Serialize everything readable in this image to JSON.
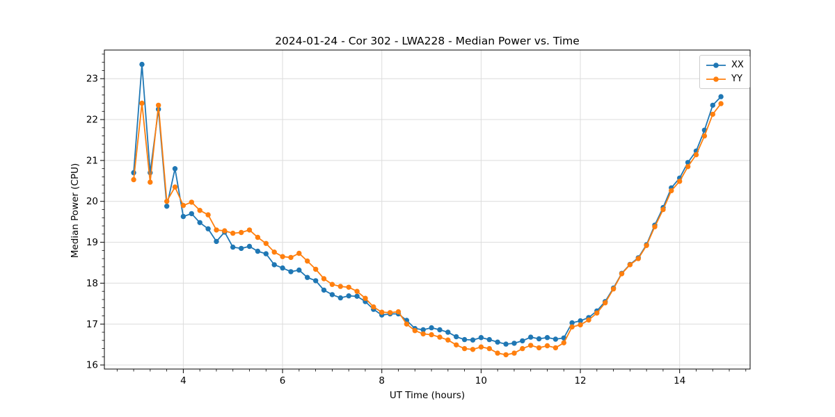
{
  "chart_data": {
    "type": "line",
    "title": "2024-01-24 - Cor 302 - LWA228 - Median Power vs. Time",
    "xlabel": "UT Time (hours)",
    "ylabel": "Median Power (CPU)",
    "xlim": [
      2.41,
      15.42
    ],
    "ylim": [
      15.9,
      23.7
    ],
    "xticks": [
      4,
      6,
      8,
      10,
      12,
      14
    ],
    "yticks": [
      16,
      17,
      18,
      19,
      20,
      21,
      22,
      23
    ],
    "x_minor_step": 0.33333,
    "y_minor_step": 0.2,
    "grid": true,
    "grid_color": "#dcdcdc",
    "spine_color": "#000000",
    "legend_position": "upper right",
    "x": [
      3,
      3.167,
      3.333,
      3.5,
      3.667,
      3.833,
      4,
      4.167,
      4.333,
      4.5,
      4.667,
      4.833,
      5,
      5.167,
      5.333,
      5.5,
      5.667,
      5.833,
      6,
      6.167,
      6.333,
      6.5,
      6.667,
      6.833,
      7,
      7.167,
      7.333,
      7.5,
      7.667,
      7.833,
      8,
      8.167,
      8.333,
      8.5,
      8.667,
      8.833,
      9,
      9.167,
      9.333,
      9.5,
      9.667,
      9.833,
      10,
      10.167,
      10.333,
      10.5,
      10.667,
      10.833,
      11,
      11.167,
      11.333,
      11.5,
      11.667,
      11.833,
      12,
      12.167,
      12.333,
      12.5,
      12.667,
      12.833,
      13,
      13.167,
      13.333,
      13.5,
      13.667,
      13.833,
      14,
      14.167,
      14.333,
      14.5,
      14.667,
      14.833
    ],
    "series": [
      {
        "name": "XX",
        "color": "#1f77b4",
        "values": [
          20.7,
          23.35,
          20.7,
          22.25,
          19.88,
          20.8,
          19.63,
          19.7,
          19.48,
          19.33,
          19.02,
          19.25,
          18.88,
          18.85,
          18.9,
          18.78,
          18.72,
          18.45,
          18.37,
          18.28,
          18.32,
          18.14,
          18.06,
          17.83,
          17.72,
          17.64,
          17.69,
          17.68,
          17.55,
          17.36,
          17.22,
          17.25,
          17.25,
          17.09,
          16.89,
          16.86,
          16.91,
          16.86,
          16.8,
          16.69,
          16.62,
          16.61,
          16.67,
          16.62,
          16.56,
          16.51,
          16.53,
          16.59,
          16.68,
          16.64,
          16.67,
          16.63,
          16.66,
          17.03,
          17.08,
          17.16,
          17.32,
          17.55,
          17.88,
          18.24,
          18.46,
          18.62,
          18.94,
          19.42,
          19.85,
          20.33,
          20.57,
          20.95,
          21.23,
          21.74,
          22.35,
          22.56
        ]
      },
      {
        "name": "YY",
        "color": "#ff7f0e",
        "values": [
          20.53,
          22.4,
          20.47,
          22.35,
          20.0,
          20.35,
          19.9,
          19.98,
          19.78,
          19.67,
          19.3,
          19.28,
          19.22,
          19.24,
          19.3,
          19.12,
          18.97,
          18.76,
          18.65,
          18.63,
          18.73,
          18.54,
          18.34,
          18.11,
          17.97,
          17.92,
          17.9,
          17.8,
          17.63,
          17.42,
          17.29,
          17.28,
          17.3,
          17.0,
          16.84,
          16.76,
          16.74,
          16.68,
          16.61,
          16.49,
          16.4,
          16.38,
          16.44,
          16.4,
          16.29,
          16.25,
          16.29,
          16.4,
          16.48,
          16.42,
          16.47,
          16.42,
          16.54,
          16.93,
          16.98,
          17.1,
          17.27,
          17.52,
          17.86,
          18.23,
          18.45,
          18.6,
          18.92,
          19.38,
          19.8,
          20.26,
          20.49,
          20.85,
          21.14,
          21.6,
          22.13,
          22.39
        ]
      }
    ]
  }
}
